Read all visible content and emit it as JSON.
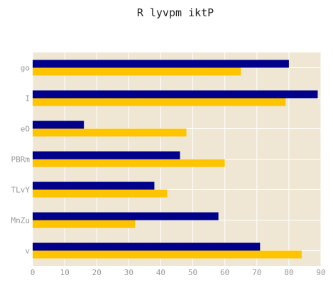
{
  "chart_data": {
    "type": "bar",
    "orientation": "horizontal",
    "title": "R lyvpm iktP",
    "xlabel": "",
    "ylabel": "",
    "categories": [
      "go",
      "I",
      "eO",
      "PBRm",
      "TLvY",
      "MnZu",
      "v"
    ],
    "series": [
      {
        "values": [
          80,
          89,
          16,
          46,
          38,
          58,
          71
        ],
        "color": "#00008b"
      },
      {
        "values": [
          65,
          79,
          48,
          60,
          42,
          32,
          84
        ],
        "color": "#ffc400"
      }
    ],
    "xlim": [
      0,
      90
    ],
    "xticks": [
      0,
      10,
      20,
      30,
      40,
      50,
      60,
      70,
      80,
      90
    ],
    "grid": true,
    "background": "#efe7d4",
    "gridColor": "#ffffff"
  }
}
